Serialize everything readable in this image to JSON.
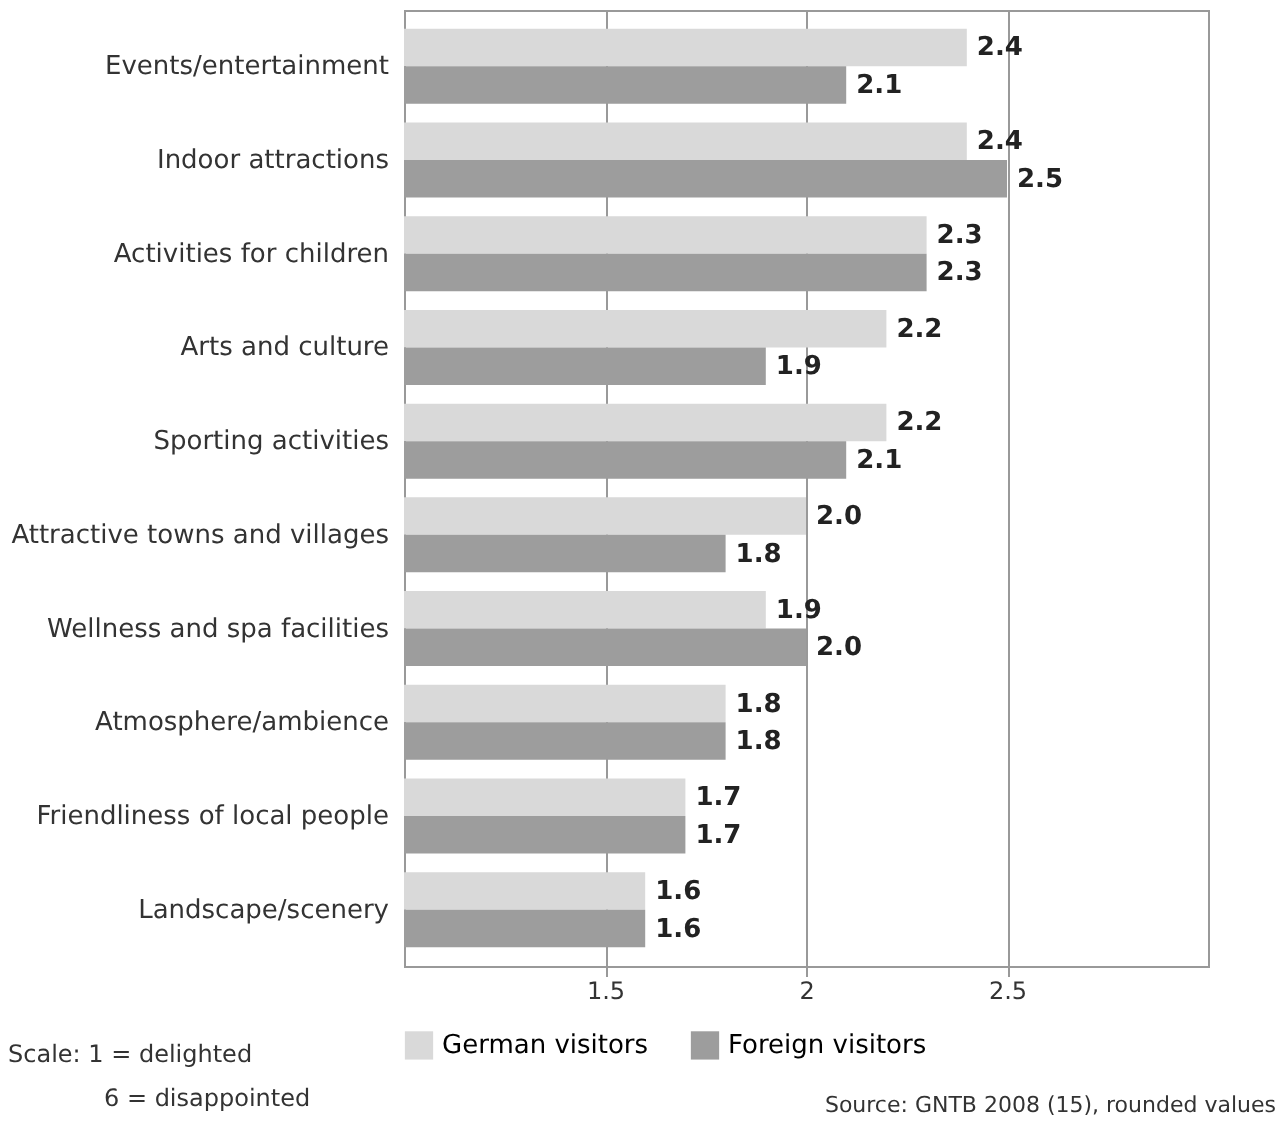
{
  "chart_data": {
    "type": "bar",
    "orientation": "horizontal",
    "categories": [
      "Events/entertainment",
      "Indoor attractions",
      "Activities for children",
      "Arts and culture",
      "Sporting activities",
      "Attractive towns and villages",
      "Wellness and spa facilities",
      "Atmosphere/ambience",
      "Friendliness of local people",
      "Landscape/scenery"
    ],
    "series": [
      {
        "name": "German visitors",
        "color": "#d9d9d9",
        "values": [
          2.4,
          2.4,
          2.3,
          2.2,
          2.2,
          2.0,
          1.9,
          1.8,
          1.7,
          1.6
        ],
        "value_labels": [
          "2.4",
          "2.4",
          "2.3",
          "2.2",
          "2.2",
          "2.0",
          "1.9",
          "1.8",
          "1.7",
          "1.6"
        ]
      },
      {
        "name": "Foreign visitors",
        "color": "#9d9d9d",
        "values": [
          2.1,
          2.5,
          2.3,
          1.9,
          2.1,
          1.8,
          2.0,
          1.8,
          1.7,
          1.6
        ],
        "value_labels": [
          "2.1",
          "2.5",
          "2.3",
          "1.9",
          "2.1",
          "1.8",
          "2.0",
          "1.8",
          "1.7",
          "1.6"
        ]
      }
    ],
    "xlim": [
      1,
      3
    ],
    "xticks": [
      1.5,
      2,
      2.5
    ],
    "grid": "x",
    "legend": "bottom",
    "annotations": [
      "Scale: 1 = delighted",
      "6 = disappointed",
      "Source: GNTB 2008 (15), rounded values"
    ]
  }
}
